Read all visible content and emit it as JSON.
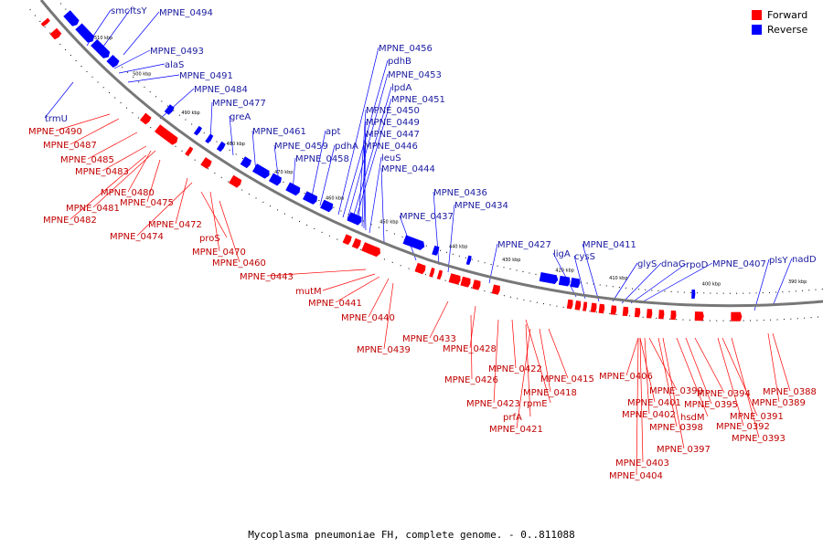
{
  "legend": {
    "forward_label": "Forward",
    "reverse_label": "Reverse",
    "forward_color": "#ff0000",
    "reverse_color": "#0000ff"
  },
  "caption": "Mycoplasma pneumoniae FH, complete genome. - 0..811088",
  "ticks": [
    "510 kbp",
    "500 kbp",
    "490 kbp",
    "480 kbp",
    "470 kbp",
    "460 kbp",
    "450 kbp",
    "440 kbp",
    "430 kbp",
    "420 kbp",
    "410 kbp",
    "400 kbp",
    "390 kbp"
  ],
  "reverse_labels": [
    "smc",
    "ftsY",
    "MPNE_0494",
    "MPNE_0493",
    "alaS",
    "MPNE_0491",
    "MPNE_0484",
    "trmU",
    "MPNE_0477",
    "greA",
    "MPNE_0461",
    "MPNE_0459",
    "MPNE_0458",
    "apt",
    "pdhA",
    "MPNE_0456",
    "pdhB",
    "MPNE_0453",
    "lpdA",
    "MPNE_0451",
    "MPNE_0450",
    "MPNE_0449",
    "MPNE_0447",
    "MPNE_0446",
    "leuS",
    "MPNE_0444",
    "MPNE_0437",
    "MPNE_0436",
    "MPNE_0434",
    "MPNE_0427",
    "ligA",
    "cysS",
    "MPNE_0411",
    "glyS",
    "dnaG",
    "rpoD",
    "MPNE_0407",
    "plsY",
    "nadD"
  ],
  "forward_labels": [
    "MPNE_0490",
    "MPNE_0487",
    "MPNE_0485",
    "MPNE_0483",
    "MPNE_0480",
    "MPNE_0481",
    "MPNE_0475",
    "MPNE_0482",
    "MPNE_0472",
    "MPNE_0474",
    "proS",
    "MPNE_0470",
    "MPNE_0460",
    "MPNE_0443",
    "mutM",
    "MPNE_0441",
    "MPNE_0440",
    "MPNE_0439",
    "MPNE_0433",
    "MPNE_0428",
    "MPNE_0426",
    "MPNE_0422",
    "MPNE_0423",
    "rpmE",
    "MPNE_0418",
    "MPNE_0415",
    "prfA",
    "MPNE_0421",
    "MPNE_0406",
    "MPNE_0399",
    "MPNE_0401",
    "MPNE_0402",
    "MPNE_0398",
    "hsdM",
    "MPNE_0394",
    "MPNE_0395",
    "MPNE_0391",
    "MPNE_0392",
    "MPNE_0393",
    "MPNE_0397",
    "MPNE_0403",
    "MPNE_0404",
    "MPNE_0388",
    "MPNE_0389"
  ]
}
